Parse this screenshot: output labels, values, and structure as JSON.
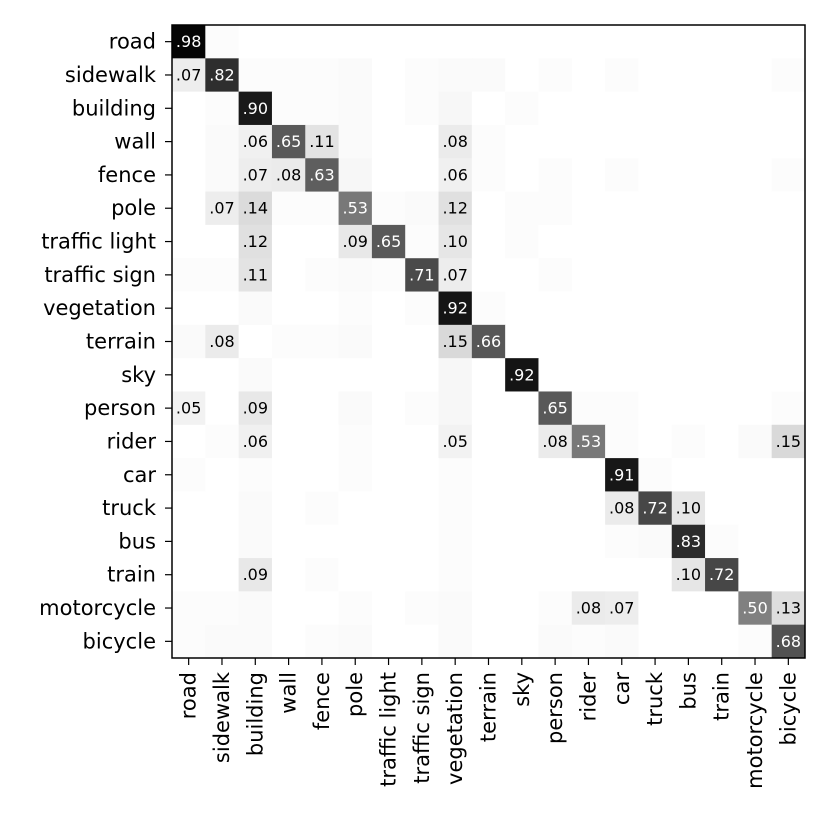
{
  "chart_data": {
    "type": "heatmap",
    "colormap": "gray_r",
    "label_colors": {
      "dark_text": "#000000",
      "light_text": "#ffffff"
    },
    "row_labels": [
      "road",
      "sidewalk",
      "building",
      "wall",
      "fence",
      "pole",
      "traffic light",
      "traffic sign",
      "vegetation",
      "terrain",
      "sky",
      "person",
      "rider",
      "car",
      "truck",
      "bus",
      "train",
      "motorcycle",
      "bicycle"
    ],
    "col_labels": [
      "road",
      "sidewalk",
      "building",
      "wall",
      "fence",
      "pole",
      "traffic light",
      "traffic sign",
      "vegetation",
      "terrain",
      "sky",
      "person",
      "rider",
      "car",
      "truck",
      "bus",
      "train",
      "motorcycle",
      "bicycle"
    ],
    "values": [
      [
        0.98,
        0.01,
        0,
        0,
        0,
        0,
        0,
        0,
        0,
        0,
        0,
        0,
        0,
        0,
        0,
        0,
        0,
        0,
        0
      ],
      [
        0.07,
        0.82,
        0.01,
        0.01,
        0.01,
        0.02,
        0,
        0.01,
        0.02,
        0.02,
        0,
        0.01,
        0,
        0.01,
        0,
        0,
        0,
        0,
        0.01
      ],
      [
        0,
        0.01,
        0.9,
        0.01,
        0.01,
        0.02,
        0,
        0.01,
        0.03,
        0,
        0.01,
        0,
        0,
        0,
        0,
        0,
        0,
        0,
        0
      ],
      [
        0,
        0.02,
        0.06,
        0.65,
        0.11,
        0.02,
        0,
        0,
        0.08,
        0.01,
        0,
        0,
        0,
        0,
        0,
        0,
        0,
        0,
        0
      ],
      [
        0,
        0.02,
        0.07,
        0.08,
        0.63,
        0.03,
        0,
        0,
        0.06,
        0.01,
        0,
        0.01,
        0,
        0.01,
        0,
        0,
        0,
        0,
        0.01
      ],
      [
        0,
        0.07,
        0.14,
        0.01,
        0.01,
        0.53,
        0.01,
        0.02,
        0.12,
        0,
        0.01,
        0.01,
        0,
        0,
        0,
        0,
        0,
        0,
        0
      ],
      [
        0,
        0,
        0.12,
        0,
        0,
        0.09,
        0.65,
        0.01,
        0.1,
        0,
        0.01,
        0,
        0,
        0,
        0,
        0,
        0,
        0,
        0
      ],
      [
        0.01,
        0.01,
        0.11,
        0,
        0.01,
        0.02,
        0.01,
        0.71,
        0.07,
        0,
        0,
        0.01,
        0,
        0,
        0,
        0,
        0,
        0,
        0
      ],
      [
        0,
        0,
        0.02,
        0,
        0,
        0.01,
        0,
        0.01,
        0.92,
        0.01,
        0,
        0,
        0,
        0,
        0,
        0,
        0,
        0,
        0
      ],
      [
        0.02,
        0.08,
        0,
        0.01,
        0.01,
        0.02,
        0,
        0,
        0.15,
        0.66,
        0,
        0,
        0,
        0,
        0,
        0,
        0,
        0,
        0
      ],
      [
        0,
        0,
        0.02,
        0,
        0,
        0,
        0,
        0,
        0.03,
        0,
        0.92,
        0,
        0,
        0,
        0,
        0,
        0,
        0,
        0
      ],
      [
        0.05,
        0,
        0.09,
        0,
        0,
        0.02,
        0,
        0.01,
        0.03,
        0,
        0,
        0.65,
        0.01,
        0.01,
        0,
        0,
        0,
        0,
        0.01
      ],
      [
        0,
        0.01,
        0.06,
        0,
        0,
        0.01,
        0,
        0,
        0.05,
        0,
        0,
        0.08,
        0.53,
        0.01,
        0,
        0.01,
        0,
        0.02,
        0.15
      ],
      [
        0.01,
        0,
        0.01,
        0,
        0,
        0.01,
        0,
        0,
        0.01,
        0,
        0,
        0,
        0,
        0.91,
        0.01,
        0,
        0,
        0,
        0
      ],
      [
        0,
        0,
        0.02,
        0,
        0.01,
        0,
        0,
        0,
        0.01,
        0,
        0,
        0,
        0,
        0.08,
        0.72,
        0.1,
        0,
        0,
        0
      ],
      [
        0,
        0,
        0.02,
        0,
        0,
        0,
        0,
        0,
        0.01,
        0,
        0,
        0,
        0,
        0.01,
        0.02,
        0.83,
        0.01,
        0,
        0
      ],
      [
        0,
        0,
        0.09,
        0,
        0.01,
        0,
        0,
        0,
        0.01,
        0,
        0,
        0,
        0,
        0,
        0,
        0.1,
        0.72,
        0,
        0
      ],
      [
        0.01,
        0.01,
        0.02,
        0,
        0,
        0.01,
        0,
        0.01,
        0.02,
        0,
        0,
        0.01,
        0.08,
        0.07,
        0,
        0,
        0,
        0.5,
        0.13
      ],
      [
        0.01,
        0.02,
        0.02,
        0,
        0.01,
        0.02,
        0,
        0,
        0.02,
        0,
        0,
        0.02,
        0.01,
        0.02,
        0,
        0,
        0,
        0.01,
        0.68
      ]
    ],
    "labels": [
      [
        ".98",
        "",
        "",
        "",
        "",
        "",
        "",
        "",
        "",
        "",
        "",
        "",
        "",
        "",
        "",
        "",
        "",
        "",
        ""
      ],
      [
        ".07",
        ".82",
        "",
        "",
        "",
        "",
        "",
        "",
        "",
        "",
        "",
        "",
        "",
        "",
        "",
        "",
        "",
        "",
        ""
      ],
      [
        "",
        "",
        ".90",
        "",
        "",
        "",
        "",
        "",
        "",
        "",
        "",
        "",
        "",
        "",
        "",
        "",
        "",
        "",
        ""
      ],
      [
        "",
        "",
        ".06",
        ".65",
        ".11",
        "",
        "",
        "",
        ".08",
        "",
        "",
        "",
        "",
        "",
        "",
        "",
        "",
        "",
        ""
      ],
      [
        "",
        "",
        ".07",
        ".08",
        ".63",
        "",
        "",
        "",
        ".06",
        "",
        "",
        "",
        "",
        "",
        "",
        "",
        "",
        "",
        ""
      ],
      [
        "",
        ".07",
        ".14",
        "",
        "",
        ".53",
        "",
        "",
        ".12",
        "",
        "",
        "",
        "",
        "",
        "",
        "",
        "",
        "",
        ""
      ],
      [
        "",
        "",
        ".12",
        "",
        "",
        ".09",
        ".65",
        "",
        ".10",
        "",
        "",
        "",
        "",
        "",
        "",
        "",
        "",
        "",
        ""
      ],
      [
        "",
        "",
        ".11",
        "",
        "",
        "",
        "",
        ".71",
        ".07",
        "",
        "",
        "",
        "",
        "",
        "",
        "",
        "",
        "",
        ""
      ],
      [
        "",
        "",
        "",
        "",
        "",
        "",
        "",
        "",
        ".92",
        "",
        "",
        "",
        "",
        "",
        "",
        "",
        "",
        "",
        ""
      ],
      [
        "",
        ".08",
        "",
        "",
        "",
        "",
        "",
        "",
        ".15",
        ".66",
        "",
        "",
        "",
        "",
        "",
        "",
        "",
        "",
        ""
      ],
      [
        "",
        "",
        "",
        "",
        "",
        "",
        "",
        "",
        "",
        "",
        ".92",
        "",
        "",
        "",
        "",
        "",
        "",
        "",
        ""
      ],
      [
        ".05",
        "",
        ".09",
        "",
        "",
        "",
        "",
        "",
        "",
        "",
        "",
        ".65",
        "",
        "",
        "",
        "",
        "",
        "",
        ""
      ],
      [
        "",
        "",
        ".06",
        "",
        "",
        "",
        "",
        "",
        ".05",
        "",
        "",
        ".08",
        ".53",
        "",
        "",
        "",
        "",
        "",
        ".15"
      ],
      [
        "",
        "",
        "",
        "",
        "",
        "",
        "",
        "",
        "",
        "",
        "",
        "",
        "",
        ".91",
        "",
        "",
        "",
        "",
        ""
      ],
      [
        "",
        "",
        "",
        "",
        "",
        "",
        "",
        "",
        "",
        "",
        "",
        "",
        "",
        ".08",
        ".72",
        ".10",
        "",
        "",
        ""
      ],
      [
        "",
        "",
        "",
        "",
        "",
        "",
        "",
        "",
        "",
        "",
        "",
        "",
        "",
        "",
        "",
        ".83",
        "",
        "",
        ""
      ],
      [
        "",
        "",
        ".09",
        "",
        "",
        "",
        "",
        "",
        "",
        "",
        "",
        "",
        "",
        "",
        "",
        ".10",
        ".72",
        "",
        ""
      ],
      [
        "",
        "",
        "",
        "",
        "",
        "",
        "",
        "",
        "",
        "",
        "",
        "",
        ".08",
        ".07",
        "",
        "",
        "",
        ".50",
        ".13"
      ],
      [
        "",
        "",
        "",
        "",
        "",
        "",
        "",
        "",
        "",
        "",
        "",
        "",
        "",
        "",
        "",
        "",
        "",
        "",
        ".68"
      ]
    ],
    "grid": false
  }
}
